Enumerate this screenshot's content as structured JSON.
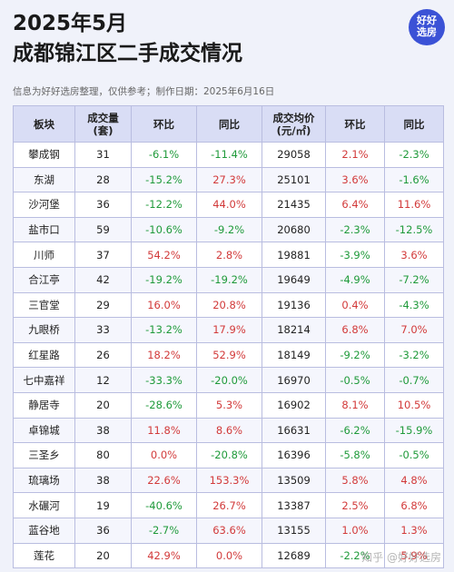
{
  "header": {
    "title_line1": "2025年5月",
    "title_line2": "成都锦江区二手成交情况",
    "subtitle": "信息为好好选房整理，仅供参考；制作日期：2025年6月16日",
    "logo_line1": "好好",
    "logo_line2": "选房"
  },
  "table": {
    "columns": [
      "板块",
      "成交量\n(套)",
      "环比",
      "同比",
      "成交均价\n(元/㎡)",
      "环比",
      "同比"
    ],
    "rows": [
      [
        "攀成钢",
        "31",
        "-6.1%",
        "-11.4%",
        "29058",
        "2.1%",
        "-2.3%"
      ],
      [
        "东湖",
        "28",
        "-15.2%",
        "27.3%",
        "25101",
        "3.6%",
        "-1.6%"
      ],
      [
        "沙河堡",
        "36",
        "-12.2%",
        "44.0%",
        "21435",
        "6.4%",
        "11.6%"
      ],
      [
        "盐市口",
        "59",
        "-10.6%",
        "-9.2%",
        "20680",
        "-2.3%",
        "-12.5%"
      ],
      [
        "川师",
        "37",
        "54.2%",
        "2.8%",
        "19881",
        "-3.9%",
        "3.6%"
      ],
      [
        "合江亭",
        "42",
        "-19.2%",
        "-19.2%",
        "19649",
        "-4.9%",
        "-7.2%"
      ],
      [
        "三官堂",
        "29",
        "16.0%",
        "20.8%",
        "19136",
        "0.4%",
        "-4.3%"
      ],
      [
        "九眼桥",
        "33",
        "-13.2%",
        "17.9%",
        "18214",
        "6.8%",
        "7.0%"
      ],
      [
        "红星路",
        "26",
        "18.2%",
        "52.9%",
        "18149",
        "-9.2%",
        "-3.2%"
      ],
      [
        "七中嘉祥",
        "12",
        "-33.3%",
        "-20.0%",
        "16970",
        "-0.5%",
        "-0.7%"
      ],
      [
        "静居寺",
        "20",
        "-28.6%",
        "5.3%",
        "16902",
        "8.1%",
        "10.5%"
      ],
      [
        "卓锦城",
        "38",
        "11.8%",
        "8.6%",
        "16631",
        "-6.2%",
        "-15.9%"
      ],
      [
        "三圣乡",
        "80",
        "0.0%",
        "-20.8%",
        "16396",
        "-5.8%",
        "-0.5%"
      ],
      [
        "琉璃场",
        "38",
        "22.6%",
        "153.3%",
        "13509",
        "5.8%",
        "4.8%"
      ],
      [
        "水碾河",
        "19",
        "-40.6%",
        "26.7%",
        "13387",
        "2.5%",
        "6.8%"
      ],
      [
        "蓝谷地",
        "36",
        "-2.7%",
        "63.6%",
        "13155",
        "1.0%",
        "1.3%"
      ],
      [
        "莲花",
        "20",
        "42.9%",
        "0.0%",
        "12689",
        "-2.2%",
        "5.9%"
      ]
    ]
  },
  "watermark": "知乎 @好好选房",
  "colors": {
    "positive": "#d23a3a",
    "negative": "#1f9a3a",
    "header_bg": "#d9ddf5",
    "logo_bg": "#3b52d6"
  }
}
